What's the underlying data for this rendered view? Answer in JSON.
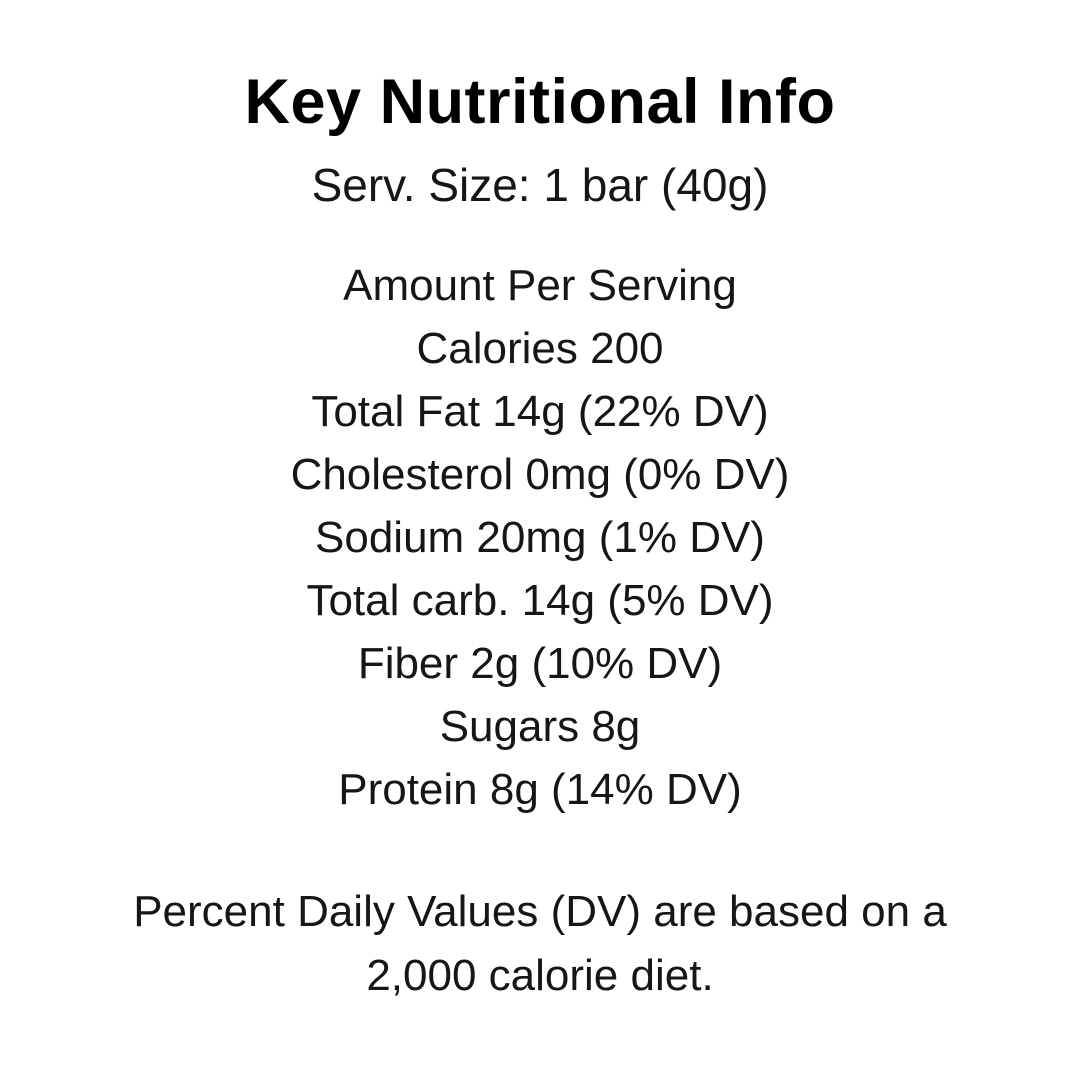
{
  "page": {
    "background_color": "#ffffff",
    "text_color": "#161616",
    "title_color": "#000000"
  },
  "header": {
    "title": "Key Nutritional Info",
    "serving_size": "Serv. Size: 1 bar (40g)"
  },
  "nutrition": {
    "section_label": "Amount Per Serving",
    "lines": [
      "Calories 200",
      "Total Fat 14g (22% DV)",
      "Cholesterol 0mg (0% DV)",
      "Sodium 20mg (1% DV)",
      "Total carb. 14g (5% DV)",
      "Fiber 2g (10% DV)",
      "Sugars 8g",
      "Protein 8g (14% DV)"
    ]
  },
  "footnote": {
    "lines": [
      "Percent Daily Values (DV) are based on a",
      "2,000 calorie diet."
    ]
  }
}
